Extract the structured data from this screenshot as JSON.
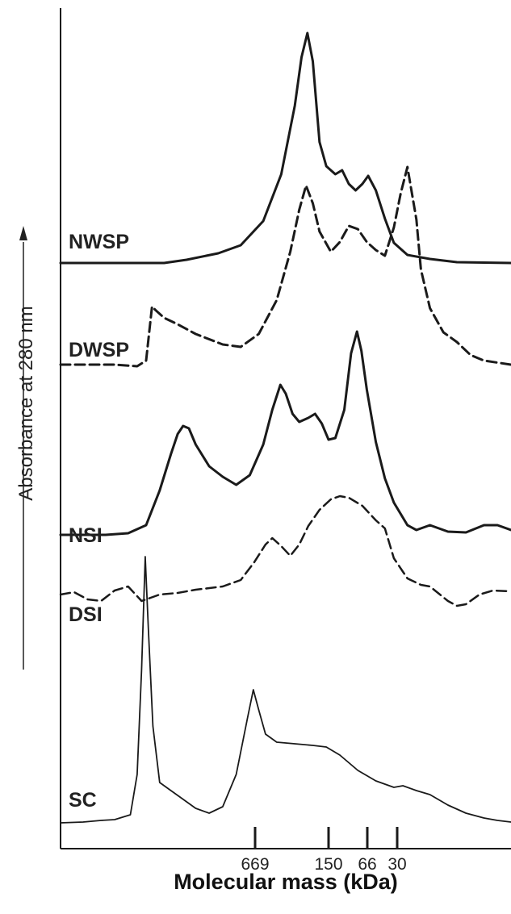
{
  "chart_data": {
    "type": "line",
    "title": "",
    "xlabel": "Molecular mass (kDa)",
    "ylabel": "Absorbance at 280 nm",
    "x_reversed": true,
    "xticks": [
      "669",
      "150",
      "66",
      "30"
    ],
    "series": [
      {
        "name": "NWSP",
        "style": "solid",
        "stroke_width": 3,
        "points": [
          [
            0,
            0
          ],
          [
            0.23,
            0
          ],
          [
            0.28,
            4
          ],
          [
            0.35,
            12
          ],
          [
            0.4,
            22
          ],
          [
            0.45,
            52
          ],
          [
            0.49,
            110
          ],
          [
            0.52,
            195
          ],
          [
            0.535,
            255
          ],
          [
            0.548,
            285
          ],
          [
            0.56,
            250
          ],
          [
            0.575,
            150
          ],
          [
            0.59,
            120
          ],
          [
            0.61,
            110
          ],
          [
            0.625,
            115
          ],
          [
            0.64,
            98
          ],
          [
            0.655,
            90
          ],
          [
            0.67,
            98
          ],
          [
            0.683,
            108
          ],
          [
            0.7,
            90
          ],
          [
            0.72,
            55
          ],
          [
            0.74,
            25
          ],
          [
            0.77,
            10
          ],
          [
            0.82,
            5
          ],
          [
            0.88,
            1
          ],
          [
            1,
            0
          ]
        ]
      },
      {
        "name": "DWSP",
        "style": "dashed",
        "stroke_width": 3,
        "points": [
          [
            0,
            0
          ],
          [
            0.12,
            0
          ],
          [
            0.17,
            -2
          ],
          [
            0.19,
            5
          ],
          [
            0.203,
            72
          ],
          [
            0.21,
            68
          ],
          [
            0.23,
            58
          ],
          [
            0.26,
            50
          ],
          [
            0.3,
            38
          ],
          [
            0.36,
            25
          ],
          [
            0.4,
            22
          ],
          [
            0.44,
            38
          ],
          [
            0.48,
            80
          ],
          [
            0.51,
            140
          ],
          [
            0.53,
            192
          ],
          [
            0.545,
            222
          ],
          [
            0.56,
            200
          ],
          [
            0.575,
            165
          ],
          [
            0.6,
            140
          ],
          [
            0.62,
            152
          ],
          [
            0.64,
            172
          ],
          [
            0.66,
            168
          ],
          [
            0.68,
            152
          ],
          [
            0.7,
            142
          ],
          [
            0.72,
            135
          ],
          [
            0.74,
            170
          ],
          [
            0.755,
            212
          ],
          [
            0.77,
            245
          ],
          [
            0.79,
            180
          ],
          [
            0.8,
            118
          ],
          [
            0.82,
            70
          ],
          [
            0.85,
            40
          ],
          [
            0.88,
            28
          ],
          [
            0.91,
            12
          ],
          [
            0.94,
            5
          ],
          [
            1,
            0
          ]
        ]
      },
      {
        "name": "NSI",
        "style": "solid",
        "stroke_width": 3,
        "points": [
          [
            0,
            0
          ],
          [
            0.1,
            0
          ],
          [
            0.15,
            2
          ],
          [
            0.19,
            12
          ],
          [
            0.22,
            55
          ],
          [
            0.245,
            100
          ],
          [
            0.26,
            125
          ],
          [
            0.272,
            135
          ],
          [
            0.285,
            132
          ],
          [
            0.3,
            112
          ],
          [
            0.33,
            85
          ],
          [
            0.36,
            72
          ],
          [
            0.39,
            62
          ],
          [
            0.42,
            74
          ],
          [
            0.45,
            112
          ],
          [
            0.47,
            155
          ],
          [
            0.488,
            186
          ],
          [
            0.5,
            175
          ],
          [
            0.515,
            150
          ],
          [
            0.53,
            140
          ],
          [
            0.55,
            145
          ],
          [
            0.565,
            150
          ],
          [
            0.58,
            138
          ],
          [
            0.595,
            118
          ],
          [
            0.61,
            120
          ],
          [
            0.63,
            155
          ],
          [
            0.645,
            225
          ],
          [
            0.658,
            252
          ],
          [
            0.668,
            228
          ],
          [
            0.68,
            180
          ],
          [
            0.7,
            115
          ],
          [
            0.72,
            70
          ],
          [
            0.74,
            40
          ],
          [
            0.77,
            12
          ],
          [
            0.79,
            6
          ],
          [
            0.82,
            12
          ],
          [
            0.86,
            4
          ],
          [
            0.9,
            3
          ],
          [
            0.94,
            12
          ],
          [
            0.97,
            12
          ],
          [
            1,
            6
          ]
        ]
      },
      {
        "name": "DSI",
        "style": "dashed",
        "stroke_width": 2.5,
        "points": [
          [
            0,
            0
          ],
          [
            0.03,
            3
          ],
          [
            0.06,
            -6
          ],
          [
            0.09,
            -8
          ],
          [
            0.12,
            5
          ],
          [
            0.15,
            10
          ],
          [
            0.18,
            -8
          ],
          [
            0.2,
            -4
          ],
          [
            0.22,
            0
          ],
          [
            0.26,
            2
          ],
          [
            0.3,
            6
          ],
          [
            0.36,
            10
          ],
          [
            0.4,
            18
          ],
          [
            0.43,
            40
          ],
          [
            0.455,
            62
          ],
          [
            0.47,
            70
          ],
          [
            0.49,
            60
          ],
          [
            0.51,
            48
          ],
          [
            0.53,
            62
          ],
          [
            0.55,
            85
          ],
          [
            0.575,
            105
          ],
          [
            0.6,
            118
          ],
          [
            0.62,
            122
          ],
          [
            0.64,
            120
          ],
          [
            0.67,
            110
          ],
          [
            0.7,
            92
          ],
          [
            0.72,
            82
          ],
          [
            0.74,
            45
          ],
          [
            0.77,
            20
          ],
          [
            0.8,
            12
          ],
          [
            0.82,
            10
          ],
          [
            0.86,
            -8
          ],
          [
            0.88,
            -14
          ],
          [
            0.9,
            -12
          ],
          [
            0.93,
            0
          ],
          [
            0.96,
            5
          ],
          [
            1,
            4
          ]
        ]
      },
      {
        "name": "SC",
        "style": "solid",
        "stroke_width": 1.8,
        "points": [
          [
            0,
            0
          ],
          [
            0.05,
            1
          ],
          [
            0.09,
            3
          ],
          [
            0.12,
            4
          ],
          [
            0.155,
            10
          ],
          [
            0.17,
            60
          ],
          [
            0.18,
            190
          ],
          [
            0.188,
            330
          ],
          [
            0.195,
            240
          ],
          [
            0.205,
            120
          ],
          [
            0.22,
            50
          ],
          [
            0.245,
            40
          ],
          [
            0.27,
            30
          ],
          [
            0.3,
            18
          ],
          [
            0.33,
            12
          ],
          [
            0.36,
            20
          ],
          [
            0.39,
            60
          ],
          [
            0.415,
            130
          ],
          [
            0.428,
            165
          ],
          [
            0.44,
            140
          ],
          [
            0.455,
            110
          ],
          [
            0.48,
            100
          ],
          [
            0.52,
            98
          ],
          [
            0.56,
            96
          ],
          [
            0.59,
            94
          ],
          [
            0.62,
            84
          ],
          [
            0.66,
            65
          ],
          [
            0.7,
            52
          ],
          [
            0.74,
            44
          ],
          [
            0.76,
            46
          ],
          [
            0.79,
            40
          ],
          [
            0.82,
            35
          ],
          [
            0.86,
            22
          ],
          [
            0.9,
            12
          ],
          [
            0.94,
            6
          ],
          [
            0.97,
            3
          ],
          [
            1,
            1
          ]
        ]
      }
    ]
  }
}
